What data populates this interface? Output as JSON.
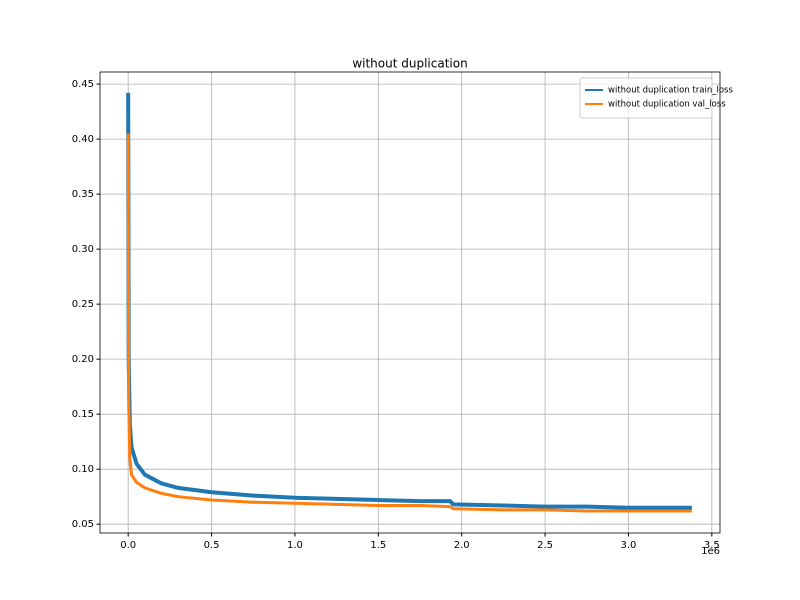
{
  "chart_data": {
    "type": "line",
    "title": "without duplication",
    "x": [
      0,
      0.003,
      0.01,
      0.02,
      0.05,
      0.1,
      0.2,
      0.3,
      0.5,
      0.75,
      1.0,
      1.25,
      1.5,
      1.75,
      1.93,
      1.95,
      2.25,
      2.5,
      2.75,
      3.0,
      3.38
    ],
    "series": [
      {
        "name": "without duplication train_loss",
        "color": "#1f77b4",
        "values": [
          0.442,
          0.2,
          0.14,
          0.12,
          0.105,
          0.095,
          0.087,
          0.083,
          0.079,
          0.076,
          0.074,
          0.073,
          0.072,
          0.071,
          0.071,
          0.068,
          0.067,
          0.066,
          0.066,
          0.065,
          0.065
        ]
      },
      {
        "name": "without duplication val_loss",
        "color": "#ff7f0e",
        "values": [
          0.405,
          0.16,
          0.11,
          0.095,
          0.088,
          0.083,
          0.078,
          0.075,
          0.072,
          0.07,
          0.069,
          0.068,
          0.067,
          0.067,
          0.066,
          0.064,
          0.063,
          0.063,
          0.062,
          0.062,
          0.062
        ]
      }
    ],
    "xlim": [
      -0.169,
      3.549
    ],
    "xticks": [
      {
        "value": 0,
        "label": "0.0"
      },
      0.5,
      {
        "value": 1,
        "label": "1.0"
      },
      1.5,
      {
        "value": 2,
        "label": "2.0"
      },
      2.5,
      {
        "value": 3,
        "label": "3.0"
      },
      3.5
    ],
    "x_offset_label": "1e6",
    "ylim": [
      0.042,
      0.461
    ],
    "yticks": [
      0.05,
      {
        "value": 0.1,
        "label": "0.10"
      },
      0.15,
      {
        "value": 0.2,
        "label": "0.20"
      },
      0.25,
      {
        "value": 0.3,
        "label": "0.30"
      },
      0.35,
      {
        "value": 0.4,
        "label": "0.40"
      },
      0.45
    ],
    "grid": true,
    "legend": "upper right"
  }
}
